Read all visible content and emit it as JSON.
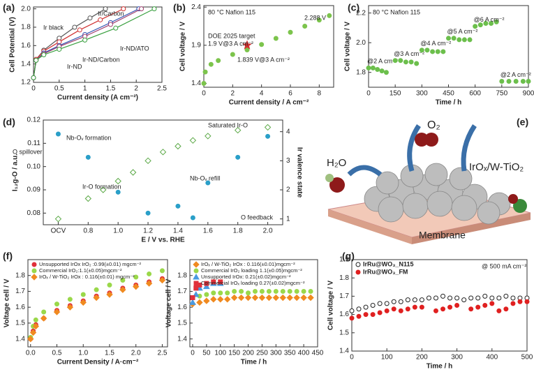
{
  "chart_data": [
    {
      "type": "line",
      "panel": "(a)",
      "xlabel": "Current density (A cm⁻²)",
      "ylabel": "Cell Potential (V)",
      "xlim": [
        0,
        2.5
      ],
      "xticks": [
        0,
        0.5,
        1,
        1.5,
        2,
        2.5
      ],
      "ylim": [
        1.2,
        2.02
      ],
      "yticks": [
        1.2,
        1.4,
        1.6,
        1.8,
        {
          "value": 2,
          "label": "2.0"
        }
      ],
      "series": [
        {
          "name": "Ir black",
          "color": "#555555",
          "marker": "open-circle",
          "x": [
            0,
            0.05,
            0.2,
            0.5,
            0.8,
            1.1,
            1.4
          ],
          "values": [
            1.25,
            1.45,
            1.55,
            1.68,
            1.8,
            1.9,
            2.0
          ]
        },
        {
          "name": "Ir/Carbon",
          "color": "#d03030",
          "marker": "open-circle",
          "x": [
            0,
            0.05,
            0.2,
            0.5,
            0.9,
            1.3,
            1.75
          ],
          "values": [
            1.25,
            1.45,
            1.54,
            1.64,
            1.77,
            1.88,
            2.0
          ]
        },
        {
          "name": "Ir-ND",
          "color": "#3050b0",
          "marker": "open-circle",
          "x": [
            0,
            0.05,
            0.2,
            0.5,
            1,
            1.5,
            2.05
          ],
          "values": [
            1.25,
            1.44,
            1.52,
            1.6,
            1.72,
            1.85,
            2.0
          ]
        },
        {
          "name": "Ir-ND/Carbon",
          "color": "#a04070",
          "marker": "open-circle",
          "x": [
            0,
            0.05,
            0.2,
            0.5,
            1,
            1.5,
            2.1
          ],
          "values": [
            1.25,
            1.44,
            1.51,
            1.59,
            1.7,
            1.83,
            2.0
          ]
        },
        {
          "name": "Ir-ND/ATO",
          "color": "#3aa040",
          "marker": "open-circle",
          "x": [
            0,
            0.05,
            0.2,
            0.5,
            1,
            1.6,
            2.35
          ],
          "values": [
            1.25,
            1.44,
            1.5,
            1.56,
            1.66,
            1.79,
            2.0
          ]
        }
      ]
    },
    {
      "type": "scatter",
      "panel": "(b)",
      "xlabel": "Current density / A cm⁻²",
      "ylabel": "Cell voltage / V",
      "xlim": [
        0,
        9
      ],
      "xticks": [
        0,
        2,
        4,
        6,
        8
      ],
      "ylim": [
        1.35,
        2.42
      ],
      "yticks": [
        1.4,
        1.9,
        2.4
      ],
      "annotations": [
        "80 °C Nafion 115",
        "2.288 V",
        "DOE 2025 target",
        "1.9 V@3 A cm⁻²",
        "1.839 V@3 A cm⁻²"
      ],
      "series": [
        {
          "color": "#7cc44c",
          "marker": "circle",
          "x": [
            0,
            0.1,
            0.5,
            1,
            2,
            3,
            4,
            5,
            6,
            7,
            8,
            8.7
          ],
          "values": [
            1.4,
            1.55,
            1.65,
            1.7,
            1.78,
            1.839,
            1.91,
            1.99,
            2.07,
            2.15,
            2.23,
            2.288
          ]
        },
        {
          "color": "#d03030",
          "marker": "star",
          "x": [
            3
          ],
          "values": [
            1.9
          ]
        }
      ]
    },
    {
      "type": "scatter",
      "panel": "(c)",
      "xlabel": "Time / h",
      "ylabel": "Cell voltage / V",
      "xlim": [
        0,
        900
      ],
      "xticks": [
        0,
        150,
        300,
        450,
        600,
        750,
        900
      ],
      "ylim": [
        1.7,
        2.25
      ],
      "yticks": [
        1.8,
        {
          "value": 2,
          "label": "2.0"
        },
        2.2
      ],
      "annotations": [
        "80 °C Nafion 115"
      ],
      "series": [
        {
          "name": "@2 A cm⁻²",
          "color": "#6cbf4c",
          "marker": "circle",
          "x": [
            0,
            25,
            50,
            75,
            100
          ],
          "values": [
            1.83,
            1.83,
            1.82,
            1.81,
            1.8
          ]
        },
        {
          "name": "@3 A cm⁻²",
          "color": "#6cbf4c",
          "marker": "circle",
          "x": [
            150,
            180,
            210,
            240,
            270
          ],
          "values": [
            1.88,
            1.88,
            1.87,
            1.87,
            1.86
          ]
        },
        {
          "name": "@4 A cm⁻²",
          "color": "#6cbf4c",
          "marker": "circle",
          "x": [
            300,
            330,
            360,
            390,
            420
          ],
          "values": [
            1.95,
            1.95,
            1.94,
            1.94,
            1.94
          ]
        },
        {
          "name": "@5 A cm⁻²",
          "color": "#6cbf4c",
          "marker": "circle",
          "x": [
            450,
            480,
            510,
            540,
            570
          ],
          "values": [
            2.03,
            2.03,
            2.02,
            2.02,
            2.02
          ]
        },
        {
          "name": "@6 A cm⁻²",
          "color": "#6cbf4c",
          "marker": "circle",
          "x": [
            600,
            630,
            660,
            690,
            720
          ],
          "values": [
            2.11,
            2.12,
            2.13,
            2.13,
            2.14
          ]
        },
        {
          "name": "@2 A cm⁻²",
          "color": "#6cbf4c",
          "marker": "circle",
          "x": [
            750,
            790,
            830,
            870,
            900
          ],
          "values": [
            1.74,
            1.74,
            1.74,
            1.74,
            1.74
          ]
        }
      ]
    },
    {
      "type": "scatter",
      "panel": "(d)",
      "xlabel": "E / V vs. RHE",
      "ylabel": "I₁₂g-O / a.u.",
      "y2label": "Ir valence state",
      "xlim": [
        0.5,
        2.1
      ],
      "xticks": [
        {
          "value": 0.6,
          "label": "OCV"
        },
        0.8,
        {
          "value": 1,
          "label": "1.0"
        },
        1.2,
        1.4,
        1.6,
        1.8,
        {
          "value": 2,
          "label": "2.0"
        }
      ],
      "ylim": [
        0.075,
        0.12
      ],
      "yticks": [
        0.08,
        0.09,
        {
          "value": 0.1,
          "label": "0.10"
        },
        0.11,
        0.12
      ],
      "y2lim": [
        0.8,
        4.4
      ],
      "y2ticks": [
        1,
        2,
        3,
        4
      ],
      "annotations": [
        "Nb-Oᵥ formation",
        "Saturated Ir-O",
        "O spillover",
        "Nb-Oᵥ refill",
        "Ir-O formation",
        "O feedback"
      ],
      "series": [
        {
          "color": "#2a9fc8",
          "marker": "circle",
          "x": [
            0.6,
            0.8,
            1,
            1.2,
            1.4,
            1.5,
            1.6,
            1.8,
            2
          ],
          "values": [
            0.114,
            0.104,
            0.089,
            0.08,
            0.083,
            0.078,
            0.093,
            0.104,
            0.113
          ]
        },
        {
          "color": "#5aa845",
          "marker": "open-diamond",
          "axis": "y2",
          "x": [
            0.6,
            0.8,
            0.9,
            1,
            1.1,
            1.2,
            1.3,
            1.4,
            1.5,
            1.6,
            1.8,
            2
          ],
          "values": [
            1,
            1.7,
            2,
            2.3,
            2.6,
            3,
            3.3,
            3.5,
            3.7,
            3.85,
            4.05,
            4.15
          ]
        }
      ]
    },
    {
      "type": "scatter",
      "panel": "(f)",
      "xlabel": "Current Density / A·cm⁻²",
      "ylabel": "Voltage cell / V",
      "legend": "upper left",
      "xlim": [
        -0.05,
        2.6
      ],
      "xticks": [
        {
          "value": 0,
          "label": "0.0"
        },
        0.5,
        {
          "value": 1,
          "label": "1.0"
        },
        1.5,
        {
          "value": 2,
          "label": "2.0"
        },
        2.5
      ],
      "ylim": [
        1.35,
        1.9
      ],
      "yticks": [
        1.4,
        1.5,
        1.6,
        1.7,
        1.8
      ],
      "series": [
        {
          "name": "Unsupported IrOx IrO₂ :0.99(±0.01) mgcm⁻²",
          "color": "#e0303a",
          "marker": "circle",
          "x": [
            0,
            0.05,
            0.1,
            0.25,
            0.5,
            0.75,
            1,
            1.25,
            1.5,
            1.75,
            2,
            2.25,
            2.5
          ],
          "values": [
            1.4,
            1.45,
            1.49,
            1.53,
            1.58,
            1.61,
            1.64,
            1.67,
            1.69,
            1.72,
            1.74,
            1.76,
            1.78
          ]
        },
        {
          "name": "Commercial IrO₂:1.1(±0.05)mgcm⁻²",
          "color": "#9ad84a",
          "marker": "circle",
          "x": [
            0,
            0.05,
            0.1,
            0.25,
            0.5,
            0.75,
            1,
            1.25,
            1.5,
            1.75,
            2,
            2.25,
            2.5
          ],
          "values": [
            1.41,
            1.48,
            1.52,
            1.57,
            1.62,
            1.65,
            1.68,
            1.71,
            1.74,
            1.77,
            1.79,
            1.81,
            1.83
          ]
        },
        {
          "name": "IrOₓ / W-TiO₂ IrOx : 0.116(±0.01) mgcm⁻²",
          "color": "#f08a20",
          "marker": "diamond",
          "x": [
            0,
            0.05,
            0.1,
            0.25,
            0.5,
            0.75,
            1,
            1.25,
            1.5,
            1.75,
            2,
            2.25,
            2.5
          ],
          "values": [
            1.4,
            1.44,
            1.48,
            1.53,
            1.57,
            1.6,
            1.63,
            1.66,
            1.68,
            1.71,
            1.73,
            1.75,
            1.77
          ]
        }
      ]
    },
    {
      "type": "scatter",
      "xlabel": "Time / h",
      "ylabel": "Voltage cell / V",
      "legend": "upper left",
      "xlim": [
        -10,
        450
      ],
      "xticks": [
        0,
        50,
        100,
        150,
        200,
        250,
        300,
        350,
        400,
        450
      ],
      "ylim": [
        1.35,
        1.9
      ],
      "yticks": [
        1.4,
        1.5,
        1.6,
        1.7,
        1.8
      ],
      "series": [
        {
          "name": "IrOₓ / W-TiO₂ IrOx : 0.116(±0.01)mgcm⁻²",
          "color": "#f08a20",
          "marker": "diamond",
          "x": [
            0,
            25,
            50,
            75,
            100,
            125,
            150,
            175,
            200,
            225,
            250,
            275,
            300,
            325,
            350,
            375,
            400,
            425
          ],
          "values": [
            1.62,
            1.63,
            1.64,
            1.65,
            1.65,
            1.65,
            1.66,
            1.66,
            1.66,
            1.66,
            1.66,
            1.66,
            1.66,
            1.66,
            1.66,
            1.66,
            1.66,
            1.66
          ]
        },
        {
          "name": "Commercial IrO₂ loading 1.1(±0.05)mgcm⁻²",
          "color": "#9ad84a",
          "marker": "circle",
          "x": [
            0,
            25,
            50,
            75,
            100,
            125,
            150,
            175,
            200,
            225,
            250,
            275,
            300,
            325,
            350,
            375,
            400,
            425
          ],
          "values": [
            1.66,
            1.67,
            1.68,
            1.69,
            1.69,
            1.69,
            1.7,
            1.7,
            1.69,
            1.7,
            1.7,
            1.7,
            1.7,
            1.7,
            1.7,
            1.7,
            1.7,
            1.7
          ]
        },
        {
          "name": "Unsupported IrOx: 0.21(±0.02)mgcm⁻²",
          "color": "#4a9ae0",
          "marker": "triangle",
          "x": [
            0,
            12,
            25,
            50,
            75,
            100
          ],
          "values": [
            1.63,
            1.68,
            1.72,
            1.73,
            1.75,
            1.75
          ]
        },
        {
          "name": "Commercial IrOₓ loading 0.27(±0.02)mgcm⁻²",
          "color": "#e0303a",
          "marker": "square",
          "x": [
            0,
            12,
            25,
            50,
            75,
            100
          ],
          "values": [
            1.66,
            1.72,
            1.74,
            1.75,
            1.76,
            1.76
          ]
        }
      ]
    },
    {
      "type": "scatter",
      "panel": "(g)",
      "xlabel": "Time / h",
      "ylabel": "Cell voltage / V",
      "legend": "upper left",
      "xlim": [
        0,
        500
      ],
      "xticks": [
        0,
        100,
        200,
        300,
        400,
        500
      ],
      "ylim": [
        1.4,
        1.9
      ],
      "yticks": [
        1.4,
        1.5,
        1.6,
        1.7,
        1.8,
        1.9
      ],
      "annotations": [
        "@ 500 mA cm⁻²"
      ],
      "series": [
        {
          "name": "IrRu@WO₃_N115",
          "color": "#222222",
          "marker": "open-circle",
          "x": [
            0,
            20,
            40,
            60,
            80,
            100,
            120,
            140,
            160,
            180,
            200,
            220,
            240,
            260,
            280,
            300,
            320,
            340,
            360,
            380,
            400,
            420,
            440,
            460,
            480,
            500
          ],
          "values": [
            1.62,
            1.63,
            1.64,
            1.65,
            1.66,
            1.66,
            1.67,
            1.67,
            1.68,
            1.68,
            1.68,
            1.69,
            1.69,
            1.7,
            1.69,
            1.69,
            1.68,
            1.69,
            1.69,
            1.7,
            1.69,
            1.69,
            1.7,
            1.69,
            1.69,
            1.69
          ]
        },
        {
          "name": "IrRu@WO₃_FM",
          "color": "#e02020",
          "marker": "circle",
          "x": [
            0,
            20,
            40,
            60,
            80,
            100,
            120,
            140,
            160,
            180,
            200,
            220,
            240,
            260,
            280,
            300,
            320,
            340,
            360,
            380,
            400,
            420,
            440,
            460,
            480,
            500
          ],
          "values": [
            1.58,
            1.59,
            1.6,
            1.6,
            1.61,
            1.62,
            1.63,
            1.62,
            1.63,
            1.64,
            1.64,
            null,
            1.62,
            1.63,
            1.64,
            1.65,
            null,
            1.63,
            1.64,
            1.65,
            1.66,
            1.62,
            1.63,
            1.66,
            1.67,
            1.67
          ]
        }
      ]
    }
  ],
  "illustration": {
    "panel": "(e)",
    "labels": [
      "O₂",
      "H₂O",
      "IrOₓ/W-TiO₂",
      "Membrane"
    ]
  }
}
